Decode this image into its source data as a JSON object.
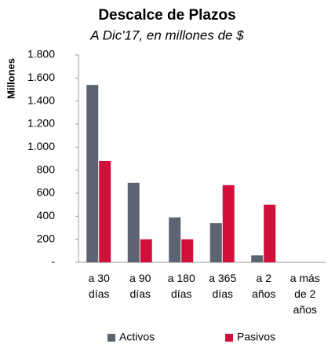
{
  "chart_data": {
    "type": "bar",
    "title": "Descalce de Plazos",
    "subtitle": "A Dic'17, en millones de $",
    "y_label": "Millones",
    "categories": [
      "a 30\ndías",
      "a 90\ndías",
      "a 180\ndías",
      "a 365\ndías",
      "a 2\naños",
      "a más\nde 2\naños"
    ],
    "series": [
      {
        "name": "Activos",
        "color": "#5b6470",
        "values": [
          1540,
          690,
          390,
          340,
          60,
          0
        ]
      },
      {
        "name": "Pasivos",
        "color": "#d0103a",
        "values": [
          880,
          200,
          200,
          670,
          500,
          0
        ]
      }
    ],
    "ylim": [
      0,
      1800
    ],
    "yticks": [
      {
        "value": 0,
        "label": "-"
      },
      200,
      400,
      600,
      800,
      {
        "value": 1000,
        "label": "1.000"
      },
      {
        "value": 1200,
        "label": "1.200"
      },
      {
        "value": 1400,
        "label": "1.400"
      },
      {
        "value": 1600,
        "label": "1.600"
      },
      {
        "value": 1800,
        "label": "1.800"
      }
    ],
    "grid": false,
    "legend": "bottom"
  }
}
